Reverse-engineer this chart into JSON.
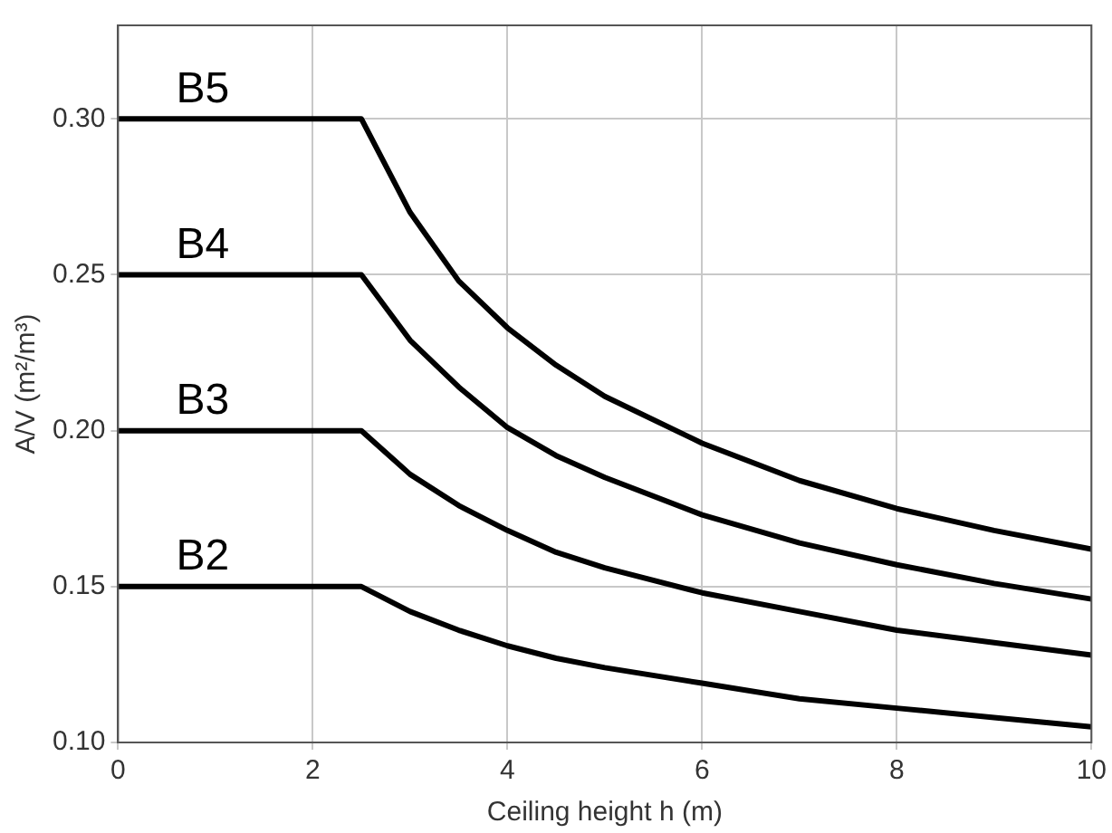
{
  "chart_data": {
    "type": "line",
    "xlabel": "Ceiling height h (m)",
    "ylabel": "A/V (m²/m³)",
    "x": [
      0,
      2.5,
      3,
      3.5,
      4,
      4.5,
      5,
      6,
      7,
      8,
      9,
      10
    ],
    "series": [
      {
        "name": "B5",
        "color": "#000000",
        "values": [
          0.3,
          0.3,
          0.27,
          0.248,
          0.233,
          0.221,
          0.211,
          0.196,
          0.184,
          0.175,
          0.168,
          0.162
        ]
      },
      {
        "name": "B4",
        "color": "#000000",
        "values": [
          0.25,
          0.25,
          0.229,
          0.214,
          0.201,
          0.192,
          0.185,
          0.173,
          0.164,
          0.157,
          0.151,
          0.146
        ]
      },
      {
        "name": "B3",
        "color": "#000000",
        "values": [
          0.2,
          0.2,
          0.186,
          0.176,
          0.168,
          0.161,
          0.156,
          0.148,
          0.142,
          0.136,
          0.132,
          0.128
        ]
      },
      {
        "name": "B2",
        "color": "#000000",
        "values": [
          0.15,
          0.15,
          0.142,
          0.136,
          0.131,
          0.127,
          0.124,
          0.119,
          0.114,
          0.111,
          0.108,
          0.105
        ]
      }
    ],
    "xlim": [
      0,
      10
    ],
    "xticks": [
      0,
      2,
      4,
      6,
      8,
      10
    ],
    "ylim": [
      0.1,
      0.33
    ],
    "yticks": [
      {
        "value": 0.1,
        "label": "0.10"
      },
      {
        "value": 0.15,
        "label": "0.15"
      },
      {
        "value": 0.2,
        "label": "0.20"
      },
      {
        "value": 0.25,
        "label": "0.25"
      },
      {
        "value": 0.3,
        "label": "0.30"
      }
    ],
    "grid": true,
    "legend": false,
    "marker": "none",
    "line_style": "solid"
  }
}
